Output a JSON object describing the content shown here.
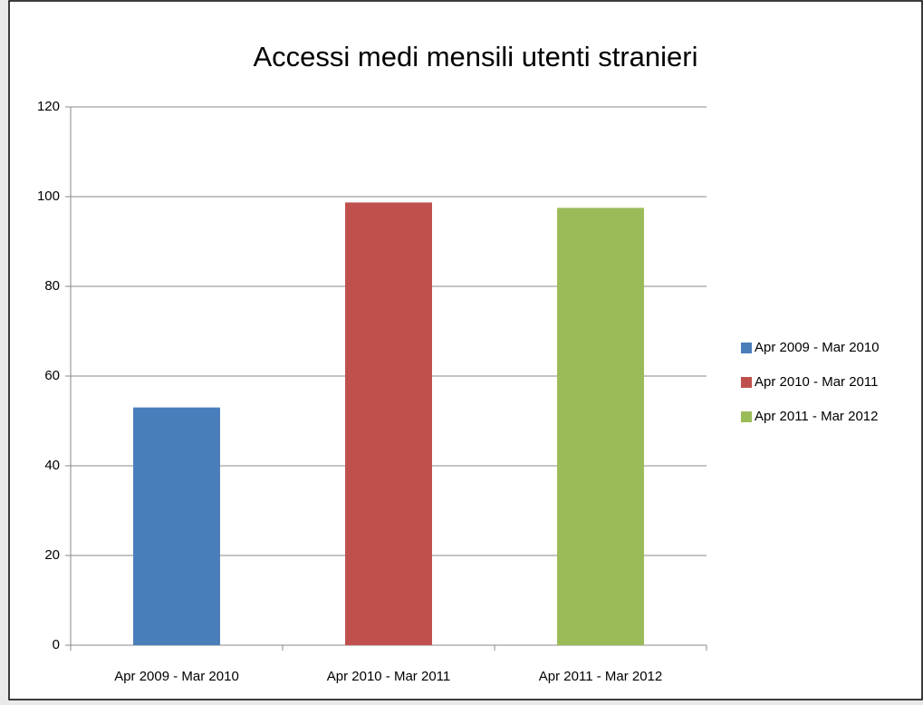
{
  "chart_data": {
    "type": "bar",
    "title": "Accessi medi mensili utenti stranieri",
    "categories": [
      "Apr 2009 - Mar 2010",
      "Apr 2010 - Mar 2011",
      "Apr 2011 - Mar 2012"
    ],
    "values": [
      53,
      98.7,
      97.5
    ],
    "colors": [
      "#4a7ebb",
      "#c0504d",
      "#9bbb59"
    ],
    "ylim": [
      0,
      120
    ],
    "yticks": [
      0,
      20,
      40,
      60,
      80,
      100,
      120
    ],
    "grid": true,
    "legend": "right"
  }
}
